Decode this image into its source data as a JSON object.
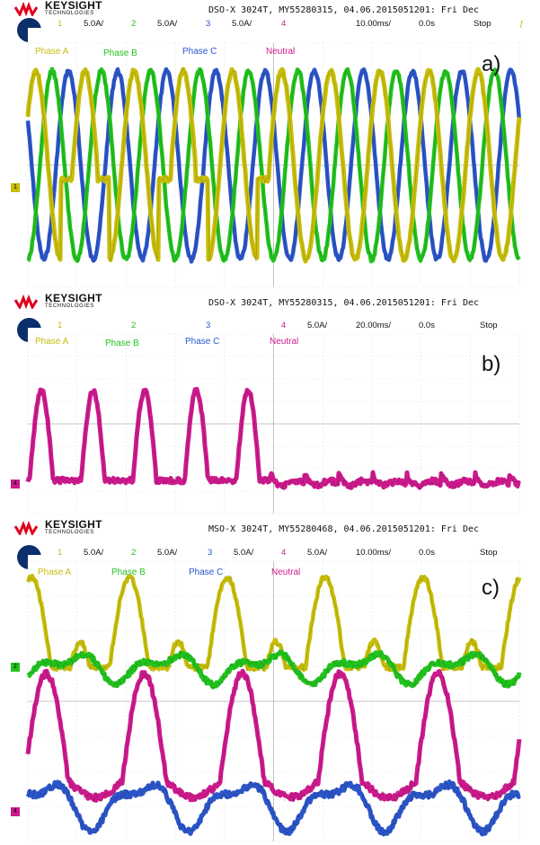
{
  "colors": {
    "ch1": "#c8be0a",
    "ch2": "#22c21e",
    "ch3": "#2b55c8",
    "ch4": "#cc1a8c",
    "grid": "#cfcfcf",
    "brand_red": "#e0001b"
  },
  "brand": {
    "name": "KEYSIGHT",
    "sub": "TECHNOLOGIES"
  },
  "panels": [
    {
      "label": "a)",
      "title": "DSO-X 3024T, MY55280315, 04.06.2015051201: Fri Dec",
      "channels": [
        {
          "num": "1",
          "scale": "5.0A/"
        },
        {
          "num": "2",
          "scale": "5.0A/"
        },
        {
          "num": "3",
          "scale": "5.0A/"
        },
        {
          "num": "4",
          "scale": ""
        }
      ],
      "timebase": "10.00ms/",
      "delay": "0.0s",
      "status": "Stop",
      "legend": [
        "Phase A",
        "Phase B",
        "Phase C",
        "Neutral"
      ]
    },
    {
      "label": "b)",
      "title": "DSO-X 3024T, MY55280315, 04.06.2015051201: Fri Dec",
      "channels": [
        {
          "num": "1",
          "scale": ""
        },
        {
          "num": "2",
          "scale": ""
        },
        {
          "num": "3",
          "scale": ""
        },
        {
          "num": "4",
          "scale": "5.0A/"
        }
      ],
      "timebase": "20.00ms/",
      "delay": "0.0s",
      "status": "Stop",
      "legend": [
        "Phase A",
        "Phase B",
        "Phase C",
        "Neutral"
      ]
    },
    {
      "label": "c)",
      "title": "MSO-X 3024T, MY55280468, 04.06.2015051201: Fri Dec",
      "channels": [
        {
          "num": "1",
          "scale": "5.0A/"
        },
        {
          "num": "2",
          "scale": "5.0A/"
        },
        {
          "num": "3",
          "scale": "5.0A/"
        },
        {
          "num": "4",
          "scale": "5.0A/"
        }
      ],
      "timebase": "10.00ms/",
      "delay": "0.0s",
      "status": "Stop",
      "legend": [
        "Phase A",
        "Phase B",
        "Phase C",
        "Neutral"
      ]
    }
  ],
  "chart_data": [
    {
      "type": "line",
      "title": "a)",
      "xlabel": "",
      "ylabel": "",
      "grid": true,
      "x_divisions": 10,
      "y_divisions": 8,
      "series": [
        {
          "name": "Phase A",
          "description": "sinusoid ~10.4 A peak with cycles flattened near -1.5 A on cycles 2 and 4 before the mid-screen event; full sinusoid afterward",
          "peak_A": 10.4,
          "cycles_on_screen": 10
        },
        {
          "name": "Phase B",
          "description": "sinusoid ~10.4 A peak, 120 deg shifted",
          "peak_A": 10.4,
          "cycles_on_screen": 10
        },
        {
          "name": "Phase C",
          "description": "sinusoid ~10.4 A peak, 240 deg shifted",
          "peak_A": 10.4,
          "cycles_on_screen": 10
        }
      ]
    },
    {
      "type": "line",
      "title": "b)",
      "xlabel": "",
      "ylabel": "",
      "grid": true,
      "x_divisions": 10,
      "y_divisions": 8,
      "series": [
        {
          "name": "Neutral",
          "description": "positive pulses of ~19 A at 5 points in the first half, then a small ~-1 A ripple after the mid-screen event",
          "pulse_peak_A": 19.0,
          "pulses": 5
        }
      ]
    },
    {
      "type": "line",
      "title": "c)",
      "xlabel": "",
      "ylabel": "",
      "grid": true,
      "x_divisions": 10,
      "y_divisions": 8,
      "series": [
        {
          "name": "Phase A",
          "description": "tall humps ~9 A with small intermediate humps",
          "peak_A": 9.0
        },
        {
          "name": "Phase B",
          "description": "small distorted wave ~2.5 A centred on its ground marker",
          "peak_A": 2.5
        },
        {
          "name": "Phase C",
          "description": "distorted wave ~3 A near bottom",
          "peak_A": 3.0
        },
        {
          "name": "Neutral",
          "description": "rounded humps ~9 A",
          "peak_A": 9.0
        }
      ]
    }
  ]
}
